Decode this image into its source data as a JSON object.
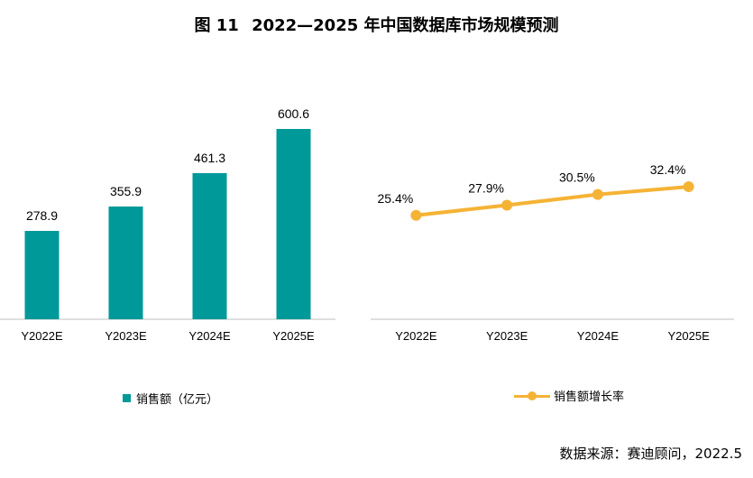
{
  "title": {
    "fig_label": "图 11",
    "text": "2022—2025 年中国数据库市场规模预测"
  },
  "source": "数据来源：赛迪顾问，2022.5",
  "colors": {
    "bar": "#009999",
    "line": "#f5b335",
    "axis": "#bfbfbf"
  },
  "chart_data": [
    {
      "type": "bar",
      "categories": [
        "Y2022E",
        "Y2023E",
        "Y2024E",
        "Y2025E"
      ],
      "series": [
        {
          "name": "销售额（亿元）",
          "values": [
            278.9,
            355.9,
            461.3,
            600.6
          ]
        }
      ],
      "data_labels": [
        "278.9",
        "355.9",
        "461.3",
        "600.6"
      ],
      "ylim": [
        0,
        600.6
      ],
      "legend": "bottom"
    },
    {
      "type": "line",
      "categories": [
        "Y2022E",
        "Y2023E",
        "Y2024E",
        "Y2025E"
      ],
      "series": [
        {
          "name": "销售额增长率",
          "values": [
            25.4,
            27.9,
            30.5,
            32.4
          ]
        }
      ],
      "data_labels": [
        "25.4%",
        "27.9%",
        "30.5%",
        "32.4%"
      ],
      "ylim": [
        0,
        56
      ],
      "legend": "bottom"
    }
  ]
}
